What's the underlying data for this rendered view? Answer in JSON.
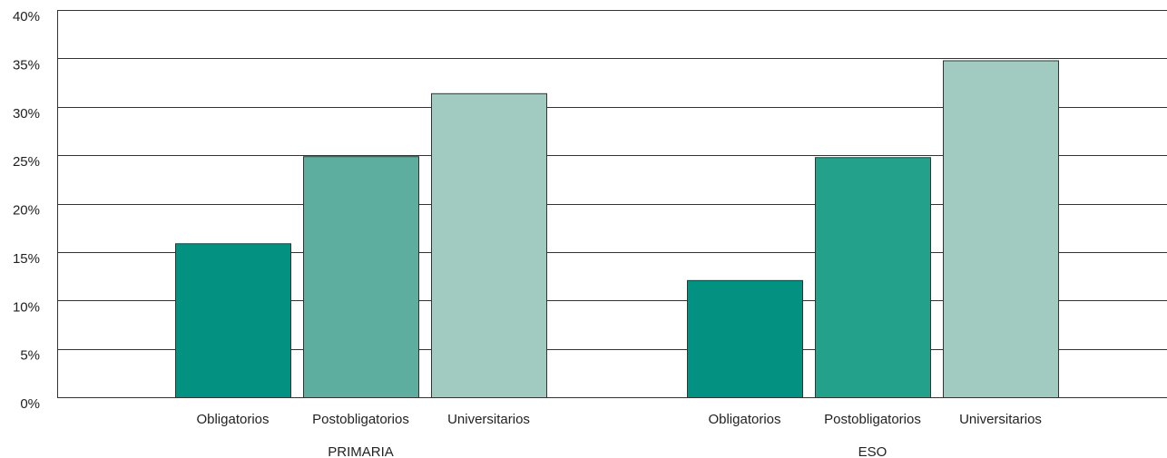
{
  "chart_data": {
    "type": "bar",
    "groups": [
      {
        "label": "PRIMARIA",
        "bars": [
          {
            "category": "Obligatorios",
            "value": 15.9,
            "color": "#039282"
          },
          {
            "category": "Postobligatorios",
            "value": 24.9,
            "color": "#5dae9e"
          },
          {
            "category": "Universitarios",
            "value": 31.4,
            "color": "#a1cbc0"
          }
        ]
      },
      {
        "label": "ESO",
        "bars": [
          {
            "category": "Obligatorios",
            "value": 12.1,
            "color": "#039282"
          },
          {
            "category": "Postobligatorios",
            "value": 24.8,
            "color": "#24a18b"
          },
          {
            "category": "Universitarios",
            "value": 34.8,
            "color": "#a1cbc0"
          }
        ]
      }
    ],
    "ylim": [
      0,
      40
    ],
    "yticks": [
      "0%",
      "5%",
      "10%",
      "15%",
      "20%",
      "25%",
      "30%",
      "35%",
      "40%"
    ],
    "ytick_values": [
      0,
      5,
      10,
      15,
      20,
      25,
      30,
      35,
      40
    ],
    "grid": true,
    "title": "",
    "xlabel": "",
    "ylabel": ""
  }
}
